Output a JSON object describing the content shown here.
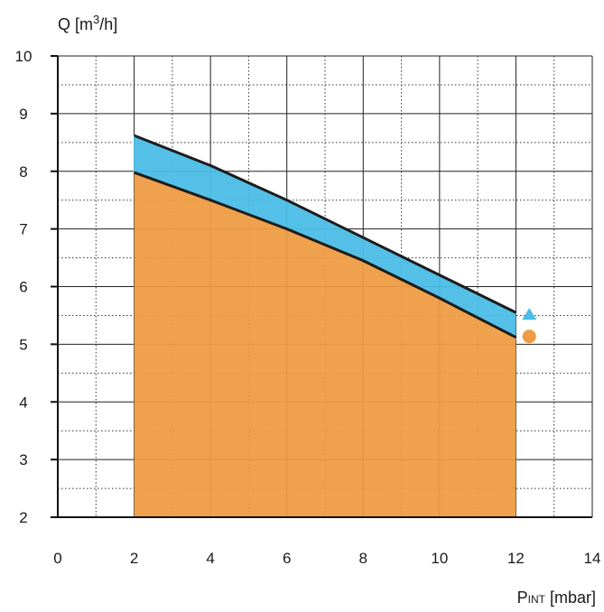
{
  "chart_data": {
    "type": "area",
    "title": "",
    "ylabel": {
      "main": "Q [m",
      "sup": "3",
      "rest": "/h]"
    },
    "xlabel": {
      "main": "P",
      "sub": "INT",
      "rest": " [mbar]"
    },
    "xlim": [
      0,
      14
    ],
    "ylim": [
      2,
      10
    ],
    "x_ticks": [
      "0",
      "2",
      "4",
      "6",
      "8",
      "10",
      "12",
      "14"
    ],
    "y_ticks": [
      "2",
      "3",
      "4",
      "5",
      "6",
      "7",
      "8",
      "9",
      "10"
    ],
    "grid": true,
    "series": [
      {
        "marker": "triangle",
        "color": "#4bbde6",
        "x": [
          2,
          4,
          6,
          8,
          10,
          12
        ],
        "y": [
          8.62,
          8.1,
          7.5,
          6.85,
          6.2,
          5.55
        ]
      },
      {
        "marker": "circle",
        "color": "#ee9b43",
        "x": [
          2,
          4,
          6,
          8,
          10,
          12
        ],
        "y": [
          7.98,
          7.5,
          7.0,
          6.45,
          5.8,
          5.12
        ]
      }
    ],
    "legend": "right"
  }
}
